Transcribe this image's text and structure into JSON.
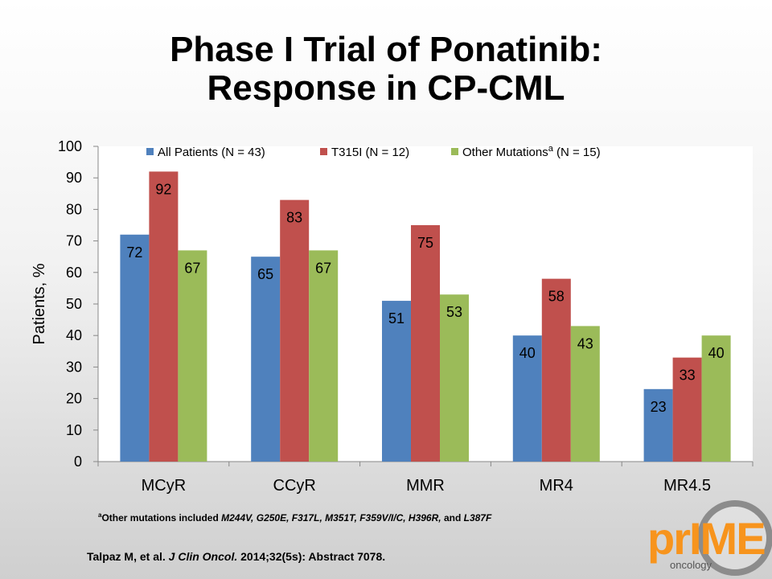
{
  "title_line1": "Phase I Trial of Ponatinib:",
  "title_line2": "Response in CP-CML",
  "chart_data": {
    "type": "bar",
    "categories": [
      "MCyR",
      "CCyR",
      "MMR",
      "MR4",
      "MR4.5"
    ],
    "series": [
      {
        "name": "All Patients (N = 43)",
        "name_sup": "",
        "name_suffix": "",
        "color": "#4f81bd",
        "values": [
          72,
          65,
          51,
          40,
          23
        ]
      },
      {
        "name": "T315I (N = 12)",
        "name_sup": "",
        "name_suffix": "",
        "color": "#c0504d",
        "values": [
          92,
          83,
          75,
          58,
          33
        ]
      },
      {
        "name": "Other Mutations",
        "name_sup": "a",
        "name_suffix": "(N = 15)",
        "color": "#9bbb59",
        "values": [
          67,
          67,
          53,
          43,
          40
        ]
      }
    ],
    "ylabel": "Patients, %",
    "xlabel": "",
    "ylim": [
      0,
      100
    ],
    "yticks": [
      0,
      10,
      20,
      30,
      40,
      50,
      60,
      70,
      80,
      90,
      100
    ],
    "legend_position": "top",
    "grid": false
  },
  "footnote": {
    "sup": "a",
    "prefix": "Other mutations included ",
    "items": "M244V, G250E, F317L, M351T, F359V/I/C, H396R,",
    "and": " and ",
    "last": "L387F"
  },
  "citation": {
    "authors": "Talpaz M, et al. ",
    "journal": "J Clin Oncol.",
    "rest": " 2014;32(5s): Abstract 7078."
  },
  "logo": {
    "text_pr": "pr",
    "text_me": "IME",
    "text_sub": "oncology"
  }
}
